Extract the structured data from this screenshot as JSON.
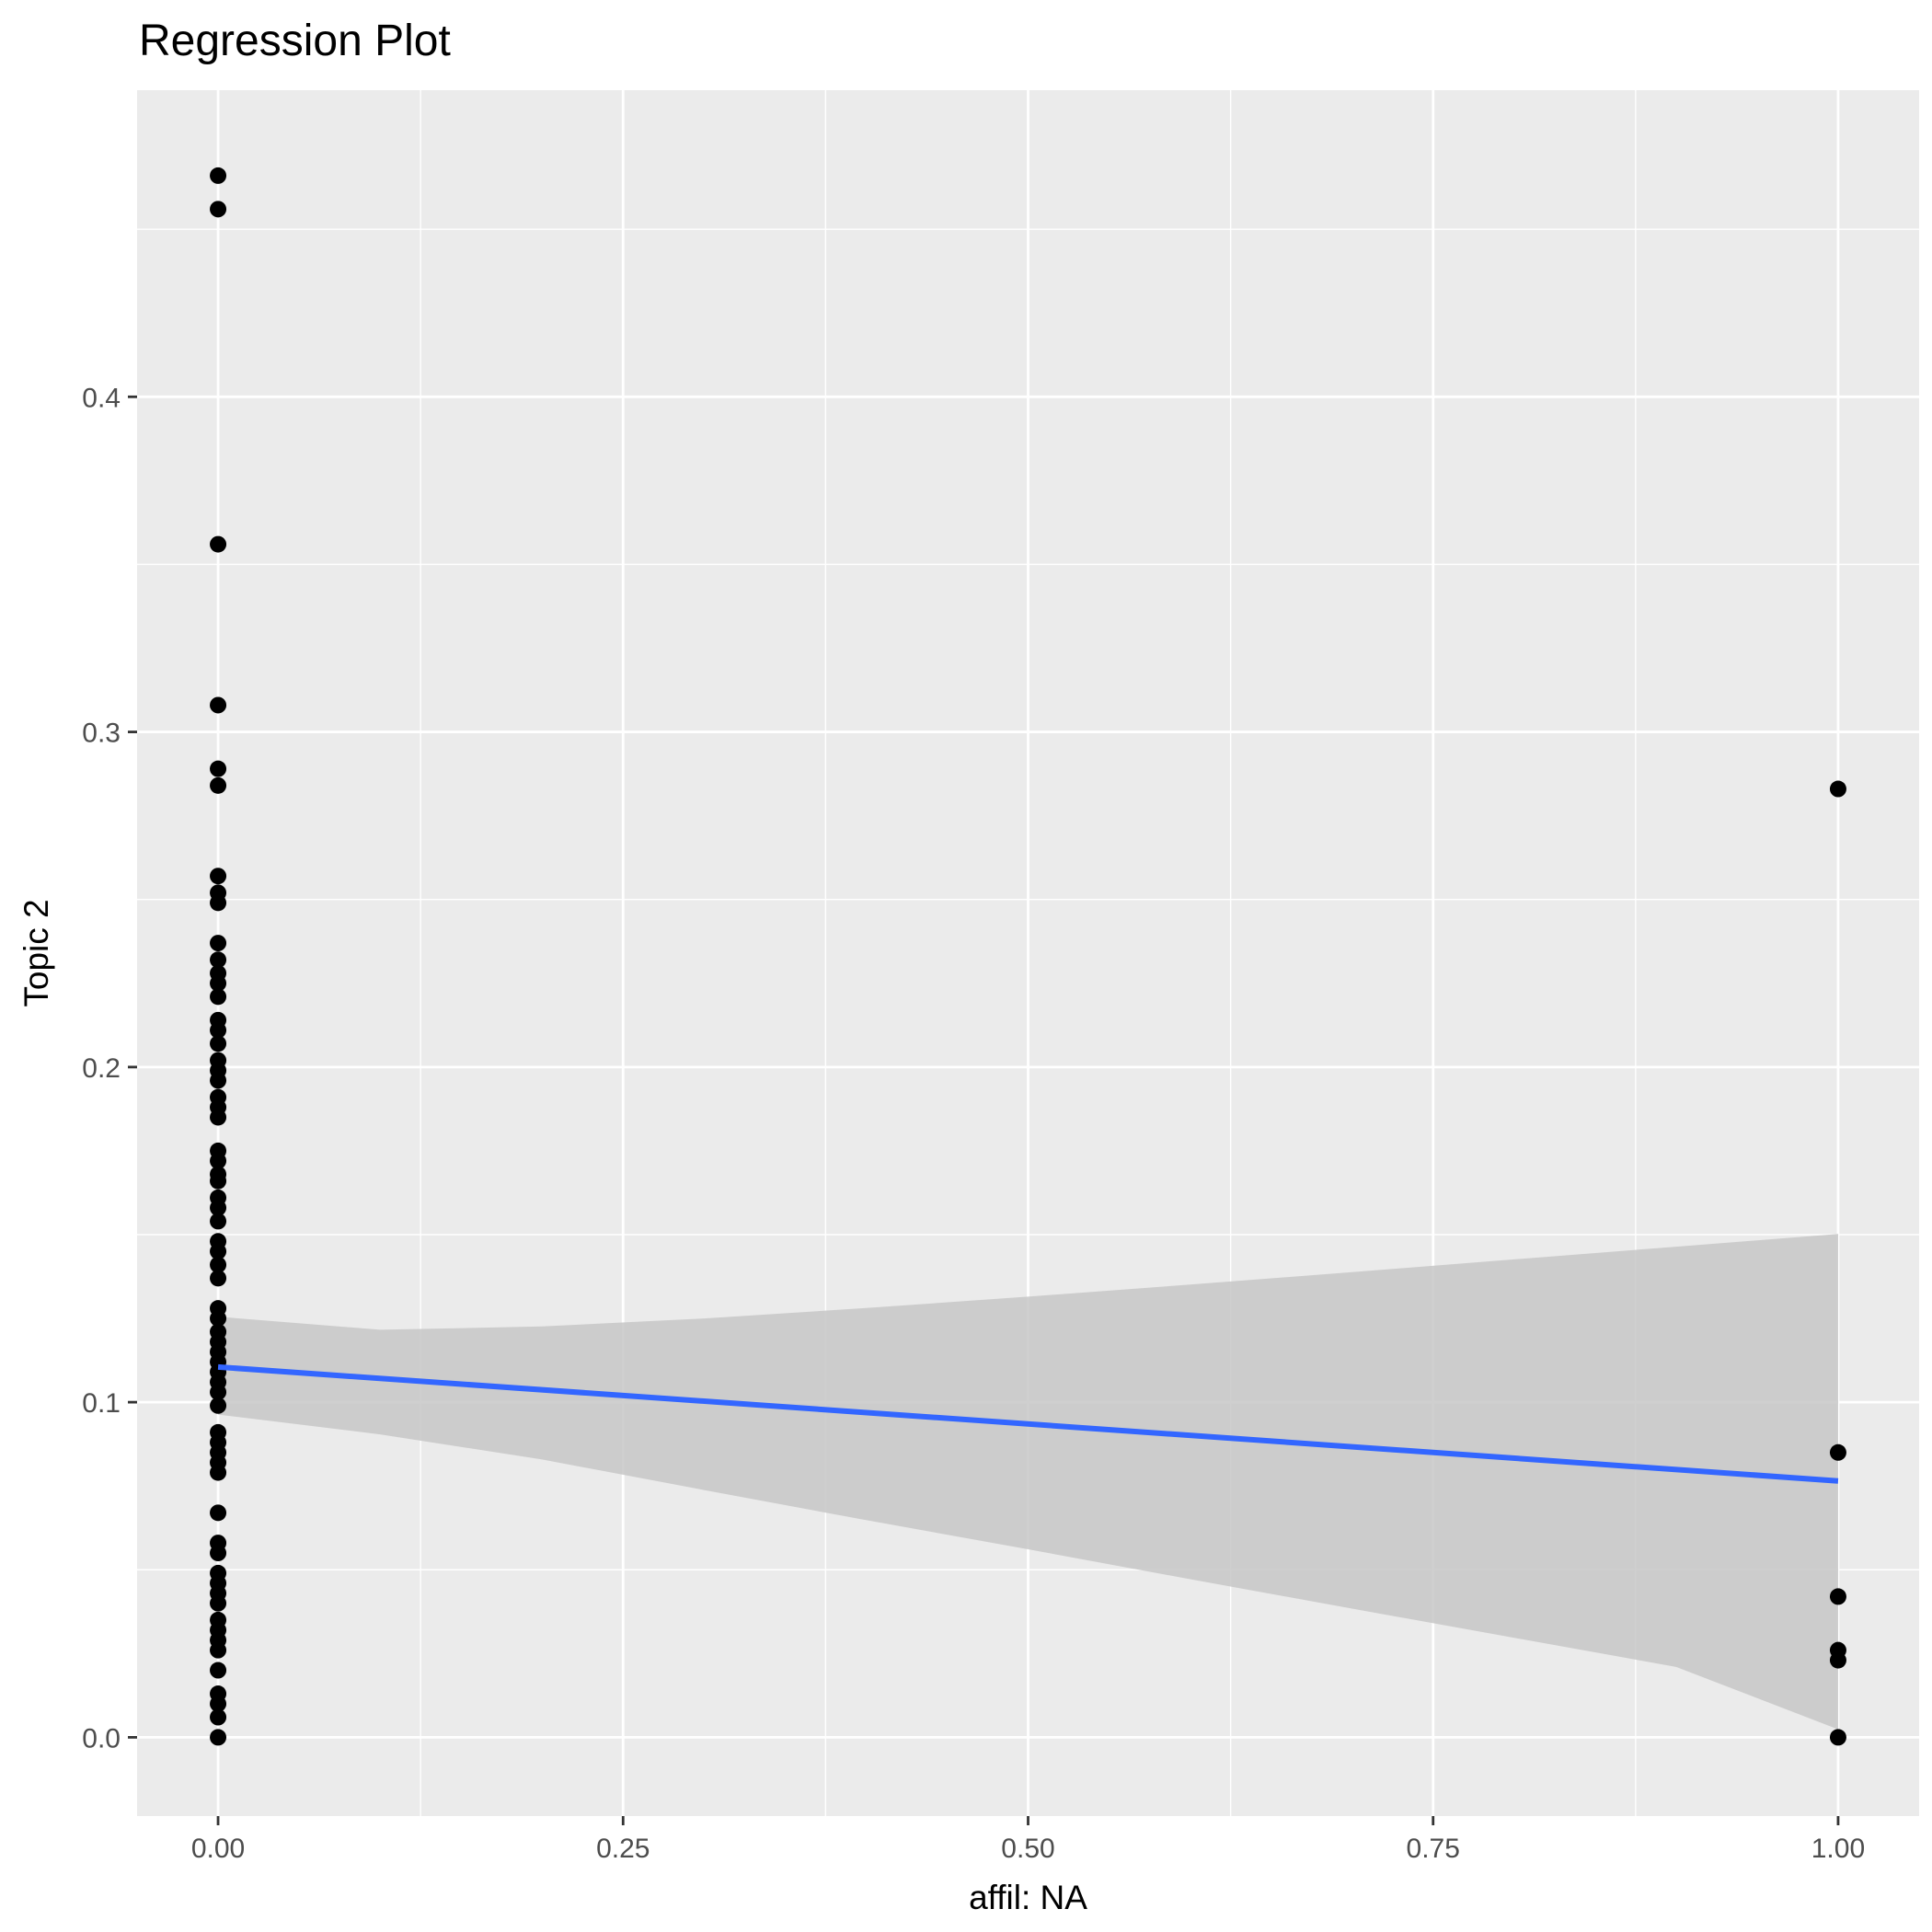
{
  "chart_data": {
    "type": "scatter",
    "title": "Regression Plot",
    "xlabel": "affil: NA",
    "ylabel": "Topic 2",
    "xlim": [
      -0.05,
      1.05
    ],
    "ylim": [
      -0.0235,
      0.4915
    ],
    "x_ticks": [
      0.0,
      0.25,
      0.5,
      0.75,
      1.0
    ],
    "x_tick_labels": [
      "0.00",
      "0.25",
      "0.50",
      "0.75",
      "1.00"
    ],
    "y_ticks": [
      0.0,
      0.1,
      0.2,
      0.3,
      0.4
    ],
    "y_tick_labels": [
      "0.0",
      "0.1",
      "0.2",
      "0.3",
      "0.4"
    ],
    "grid": true,
    "background": "#ebebeb",
    "colors": {
      "points": "#000000",
      "line": "#3366ff",
      "ribbon": "#c7c7c7",
      "grid": "#ffffff"
    },
    "points": [
      {
        "x": 0,
        "y": 0.466
      },
      {
        "x": 0,
        "y": 0.456
      },
      {
        "x": 0,
        "y": 0.356
      },
      {
        "x": 0,
        "y": 0.308
      },
      {
        "x": 0,
        "y": 0.289
      },
      {
        "x": 0,
        "y": 0.284
      },
      {
        "x": 0,
        "y": 0.257
      },
      {
        "x": 0,
        "y": 0.252
      },
      {
        "x": 0,
        "y": 0.249
      },
      {
        "x": 0,
        "y": 0.237
      },
      {
        "x": 0,
        "y": 0.232
      },
      {
        "x": 0,
        "y": 0.228
      },
      {
        "x": 0,
        "y": 0.225
      },
      {
        "x": 0,
        "y": 0.221
      },
      {
        "x": 0,
        "y": 0.214
      },
      {
        "x": 0,
        "y": 0.211
      },
      {
        "x": 0,
        "y": 0.207
      },
      {
        "x": 0,
        "y": 0.202
      },
      {
        "x": 0,
        "y": 0.199
      },
      {
        "x": 0,
        "y": 0.196
      },
      {
        "x": 0,
        "y": 0.191
      },
      {
        "x": 0,
        "y": 0.188
      },
      {
        "x": 0,
        "y": 0.185
      },
      {
        "x": 0,
        "y": 0.175
      },
      {
        "x": 0,
        "y": 0.172
      },
      {
        "x": 0,
        "y": 0.168
      },
      {
        "x": 0,
        "y": 0.166
      },
      {
        "x": 0,
        "y": 0.161
      },
      {
        "x": 0,
        "y": 0.158
      },
      {
        "x": 0,
        "y": 0.154
      },
      {
        "x": 0,
        "y": 0.148
      },
      {
        "x": 0,
        "y": 0.145
      },
      {
        "x": 0,
        "y": 0.141
      },
      {
        "x": 0,
        "y": 0.137
      },
      {
        "x": 0,
        "y": 0.128
      },
      {
        "x": 0,
        "y": 0.125
      },
      {
        "x": 0,
        "y": 0.121
      },
      {
        "x": 0,
        "y": 0.118
      },
      {
        "x": 0,
        "y": 0.115
      },
      {
        "x": 0,
        "y": 0.112
      },
      {
        "x": 0,
        "y": 0.109
      },
      {
        "x": 0,
        "y": 0.106
      },
      {
        "x": 0,
        "y": 0.103
      },
      {
        "x": 0,
        "y": 0.099
      },
      {
        "x": 0,
        "y": 0.091
      },
      {
        "x": 0,
        "y": 0.088
      },
      {
        "x": 0,
        "y": 0.085
      },
      {
        "x": 0,
        "y": 0.082
      },
      {
        "x": 0,
        "y": 0.079
      },
      {
        "x": 0,
        "y": 0.067
      },
      {
        "x": 0,
        "y": 0.058
      },
      {
        "x": 0,
        "y": 0.055
      },
      {
        "x": 0,
        "y": 0.049
      },
      {
        "x": 0,
        "y": 0.046
      },
      {
        "x": 0,
        "y": 0.043
      },
      {
        "x": 0,
        "y": 0.04
      },
      {
        "x": 0,
        "y": 0.035
      },
      {
        "x": 0,
        "y": 0.032
      },
      {
        "x": 0,
        "y": 0.029
      },
      {
        "x": 0,
        "y": 0.026
      },
      {
        "x": 0,
        "y": 0.02
      },
      {
        "x": 0,
        "y": 0.013
      },
      {
        "x": 0,
        "y": 0.01
      },
      {
        "x": 0,
        "y": 0.006
      },
      {
        "x": 0,
        "y": 0.0
      },
      {
        "x": 1,
        "y": 0.283
      },
      {
        "x": 1,
        "y": 0.085
      },
      {
        "x": 1,
        "y": 0.042
      },
      {
        "x": 1,
        "y": 0.026
      },
      {
        "x": 1,
        "y": 0.023
      },
      {
        "x": 1,
        "y": 0.0
      }
    ],
    "regression_line": {
      "x": [
        0,
        1
      ],
      "y": [
        0.1105,
        0.0765
      ]
    },
    "confidence_band": {
      "x": [
        0,
        0.1,
        0.2,
        0.3,
        0.4,
        0.5,
        0.6,
        0.7,
        0.8,
        0.9,
        1.0
      ],
      "upper": [
        0.1255,
        0.1216,
        0.1226,
        0.125,
        0.1281,
        0.1315,
        0.1351,
        0.1388,
        0.1426,
        0.1464,
        0.1502
      ],
      "lower": [
        0.0963,
        0.0904,
        0.0829,
        0.0738,
        0.0648,
        0.0561,
        0.0472,
        0.0384,
        0.0297,
        0.021,
        0.0024
      ]
    }
  }
}
